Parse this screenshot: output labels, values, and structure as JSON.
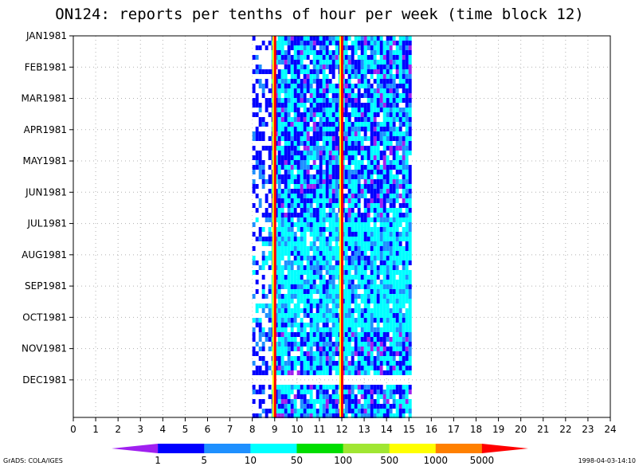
{
  "chart_data": {
    "type": "heatmap",
    "title": "ON124: reports per tenths of hour per week (time block 12)",
    "x_ticks": [
      "0",
      "1",
      "2",
      "3",
      "4",
      "5",
      "6",
      "7",
      "8",
      "9",
      "10",
      "11",
      "12",
      "13",
      "14",
      "15",
      "16",
      "17",
      "18",
      "19",
      "20",
      "21",
      "22",
      "23",
      "24"
    ],
    "xlim": [
      0,
      24
    ],
    "y_labels": [
      "JAN1981",
      "FEB1981",
      "MAR1981",
      "APR1981",
      "MAY1981",
      "JUN1981",
      "JUL1981",
      "AUG1981",
      "SEP1981",
      "OCT1981",
      "NOV1981",
      "DEC1981"
    ],
    "grid": true,
    "data_region": {
      "x_start": 8,
      "x_end": 15,
      "hot_columns": [
        9,
        12
      ]
    },
    "colorbar": {
      "labels": [
        "1",
        "5",
        "10",
        "50",
        "100",
        "500",
        "1000",
        "5000"
      ],
      "colors": [
        "#a020f0",
        "#0000ff",
        "#1e90ff",
        "#00ffff",
        "#00dd00",
        "#a0e632",
        "#ffff00",
        "#ff8000",
        "#ff0000"
      ]
    }
  },
  "footer": {
    "left": "GrADS: COLA/IGES",
    "right": "1998-04-03-14:10"
  }
}
